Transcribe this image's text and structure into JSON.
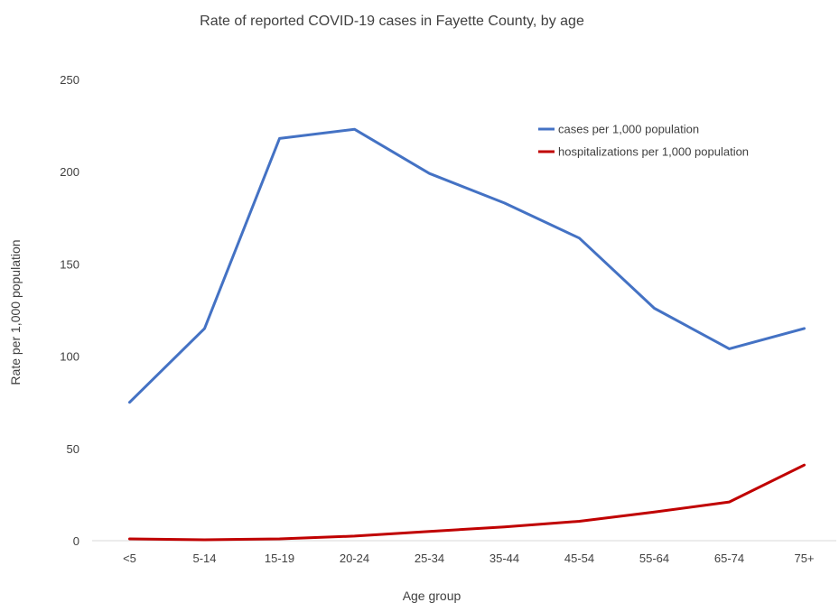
{
  "chart_data": {
    "type": "line",
    "title": "Rate of reported COVID-19 cases in Fayette County, by age",
    "xlabel": "Age group",
    "ylabel": "Rate per 1,000 population",
    "categories": [
      "<5",
      "5-14",
      "15-19",
      "20-24",
      "25-34",
      "35-44",
      "45-54",
      "55-64",
      "65-74",
      "75+"
    ],
    "ylim": [
      0,
      250
    ],
    "yticks": [
      0,
      50,
      100,
      150,
      200,
      250
    ],
    "grid": false,
    "legend_position": "top-right",
    "series": [
      {
        "name": "cases per 1,000 population",
        "color": "#4472C4",
        "values": [
          75,
          115,
          218,
          223,
          199,
          183,
          164,
          126,
          104,
          115
        ]
      },
      {
        "name": "hospitalizations per 1,000 population",
        "color": "#C00000",
        "values": [
          1,
          0.5,
          1,
          2.5,
          5,
          7.5,
          10.5,
          15.5,
          21,
          41
        ]
      }
    ]
  }
}
